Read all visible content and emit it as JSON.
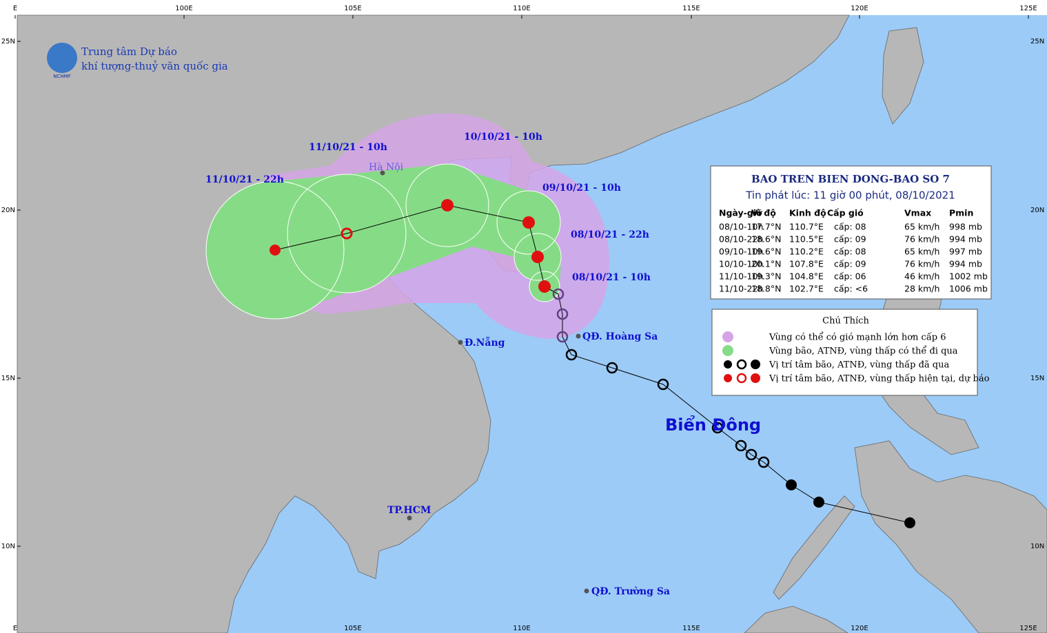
{
  "header": {
    "logo": "NCHMF",
    "org": [
      "Trung tâm Dự báo",
      "khí tượng-thuỷ văn quốc gia"
    ]
  },
  "axes": {
    "top": [
      "E",
      "100E",
      "105E",
      "110E",
      "115E",
      "120E",
      "125E"
    ],
    "bottom": [
      "E",
      "105E",
      "110E",
      "115E",
      "120E",
      "125E"
    ],
    "left": [
      "25N",
      "20N",
      "15N",
      "10N"
    ],
    "right": [
      "25N",
      "20N",
      "15N",
      "10N"
    ]
  },
  "forecast_labels": [
    "11/10/21 - 22h",
    "11/10/21 - 10h",
    "10/10/21 - 10h",
    "09/10/21 - 10h",
    "08/10/21 - 22h",
    "08/10/21 - 10h"
  ],
  "places": [
    "Hà Nội",
    "Đ.Nẵng",
    "TP.HCM",
    "QĐ. Hoàng Sa",
    "QĐ. Trường Sa",
    "Biển Đông"
  ],
  "info_box": {
    "title": "BAO TREN BIEN DONG-BAO SO 7",
    "subtitle": "Tin phát lúc: 11 giờ 00 phút, 08/10/2021",
    "table": {
      "header": [
        "Ngày-giờ",
        "Vĩ độ",
        "Kinh độ",
        "Cấp gió",
        "Vmax",
        "Pmin"
      ],
      "rows": [
        [
          "08/10-10h",
          "17.7°N",
          "110.7°E",
          "cấp: 08",
          "65 km/h",
          "998 mb"
        ],
        [
          "08/10-22h",
          "18.6°N",
          "110.5°E",
          "cấp: 09",
          "76 km/h",
          "994 mb"
        ],
        [
          "09/10-10h",
          "19.6°N",
          "110.2°E",
          "cấp: 08",
          "65 km/h",
          "997 mb"
        ],
        [
          "10/10-10h",
          "20.1°N",
          "107.8°E",
          "cấp: 09",
          "76 km/h",
          "994 mb"
        ],
        [
          "11/10-10h",
          "19.3°N",
          "104.8°E",
          "cấp: 06",
          "46 km/h",
          "1002 mb"
        ],
        [
          "11/10-22h",
          "18.8°N",
          "102.7°E",
          "cấp: <6",
          "28 km/h",
          "1006 mb"
        ]
      ]
    }
  },
  "legend": {
    "title": "Chú Thích",
    "items": [
      "Vùng có thể có gió mạnh lớn hơn cấp 6",
      "Vùng bão, ATNĐ, vùng thấp có thể đi qua",
      "Vị trí tâm bão, ATNĐ, vùng thấp đã qua",
      "Vị trí tâm bão, ATNĐ, vùng thấp hiện tại, dự báo"
    ]
  }
}
